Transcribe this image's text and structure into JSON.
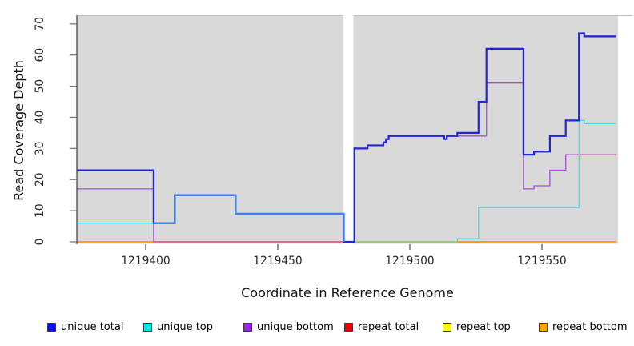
{
  "figure": {
    "background": "#ffffff",
    "plot_background": "#d9d9d9",
    "gap_band_color": "#ffffff"
  },
  "chart_data": {
    "type": "line",
    "subtype": "step-coverage-plot",
    "title": "",
    "xlabel": "Coordinate in Reference Genome",
    "ylabel": "Read Coverage Depth",
    "xlim": [
      1219374,
      1219578
    ],
    "ylim": [
      0,
      70
    ],
    "x_ticks": [
      1219400,
      1219450,
      1219500,
      1219550
    ],
    "y_ticks": [
      0,
      10,
      20,
      30,
      40,
      50,
      60,
      70
    ],
    "grid": false,
    "plot_bg": "#d9d9d9",
    "gap_x": [
      1219474.8,
      1219478.6
    ],
    "legend_position": "bottom",
    "series": [
      {
        "name": "repeat total",
        "color": "#e60000",
        "lw": 1.2,
        "steps": [
          [
            1219374,
            0
          ]
        ]
      },
      {
        "name": "repeat top",
        "color": "#ffff00",
        "lw": 1.2,
        "steps": [
          [
            1219374,
            0
          ]
        ]
      },
      {
        "name": "repeat bottom",
        "color": "#ff9d00",
        "lw": 1.8,
        "steps": [
          [
            1219374,
            0
          ]
        ]
      },
      {
        "name": "unique bottom",
        "color": "#a94be0",
        "lw": 1.3,
        "steps": [
          [
            1219374,
            17
          ],
          [
            1219403,
            0
          ],
          [
            1219479,
            30
          ],
          [
            1219484,
            31
          ],
          [
            1219490,
            32
          ],
          [
            1219491,
            33
          ],
          [
            1219492,
            34
          ],
          [
            1219513,
            33
          ],
          [
            1219514,
            34
          ],
          [
            1219529,
            51
          ],
          [
            1219543,
            17
          ],
          [
            1219547,
            18
          ],
          [
            1219553,
            23
          ],
          [
            1219559,
            28
          ]
        ]
      },
      {
        "name": "unique top",
        "color": "#3fdede",
        "lw": 1.3,
        "steps": [
          [
            1219374,
            6
          ],
          [
            1219411,
            15
          ],
          [
            1219434,
            9
          ],
          [
            1219475,
            0
          ],
          [
            1219518,
            1
          ],
          [
            1219526,
            11
          ],
          [
            1219564,
            39
          ],
          [
            1219566,
            38
          ]
        ]
      },
      {
        "name": "unique total",
        "color": "#2323d8",
        "lw": 2.2,
        "steps": [
          [
            1219374,
            23
          ],
          [
            1219403,
            6
          ],
          [
            1219411,
            15
          ],
          [
            1219434,
            9
          ],
          [
            1219475,
            0
          ],
          [
            1219479,
            30
          ],
          [
            1219484,
            31
          ],
          [
            1219490,
            32
          ],
          [
            1219491,
            33
          ],
          [
            1219492,
            34
          ],
          [
            1219513,
            33
          ],
          [
            1219514,
            34
          ],
          [
            1219518,
            35
          ],
          [
            1219526,
            45
          ],
          [
            1219529,
            62
          ],
          [
            1219543,
            28
          ],
          [
            1219547,
            29
          ],
          [
            1219553,
            34
          ],
          [
            1219559,
            39
          ],
          [
            1219564,
            67
          ],
          [
            1219566,
            66
          ]
        ]
      }
    ],
    "overlap_renderings": {
      "baseline_segments": [
        {
          "from": 1219403,
          "to": 1219476,
          "color": "#d95fa8"
        },
        {
          "from": 1219479,
          "to": 1219518,
          "color": "#8fc98f"
        }
      ],
      "total_over_top_segment": {
        "color": "#3f82ee",
        "points": [
          [
            1219403,
            6
          ],
          [
            1219411,
            6
          ],
          [
            1219411,
            15
          ],
          [
            1219434,
            15
          ],
          [
            1219434,
            9
          ],
          [
            1219475,
            9
          ],
          [
            1219475,
            0
          ]
        ]
      }
    },
    "legend": [
      {
        "label": "unique total",
        "color": "#0b0beb"
      },
      {
        "label": "unique top",
        "color": "#00e5e5"
      },
      {
        "label": "unique bottom",
        "color": "#a020f0"
      },
      {
        "label": "repeat total",
        "color": "#ee0000"
      },
      {
        "label": "repeat top",
        "color": "#ffff00"
      },
      {
        "label": "repeat bottom",
        "color": "#ffa500"
      }
    ]
  }
}
